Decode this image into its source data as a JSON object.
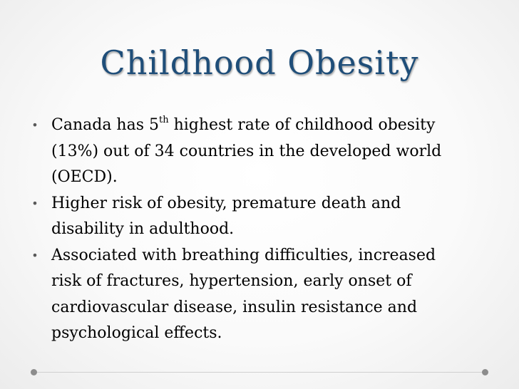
{
  "slide": {
    "title": "Childhood Obesity",
    "bullet_marker": "•",
    "bullets": [
      {
        "before_sup": "Canada has 5",
        "sup": "th",
        "after_sup": " highest rate of childhood obesity",
        "line2": "(13%) out of 34 countries in the developed world",
        "line3": "(OECD)."
      },
      {
        "line1": "Higher risk of obesity, premature death and",
        "line2": "disability in adulthood."
      },
      {
        "line1": "Associated with breathing difficulties, increased",
        "line2": "risk of fractures, hypertension, early onset of",
        "line3": "cardiovascular disease, insulin resistance and",
        "line4": "psychological effects."
      }
    ]
  },
  "colors": {
    "title": "#1f4e79",
    "text": "#000000",
    "bullet": "#595959",
    "frame_dot": "#8c8c8c"
  },
  "icons": {
    "bullet": "bullet-icon",
    "frame_dots": "dot-icon"
  }
}
